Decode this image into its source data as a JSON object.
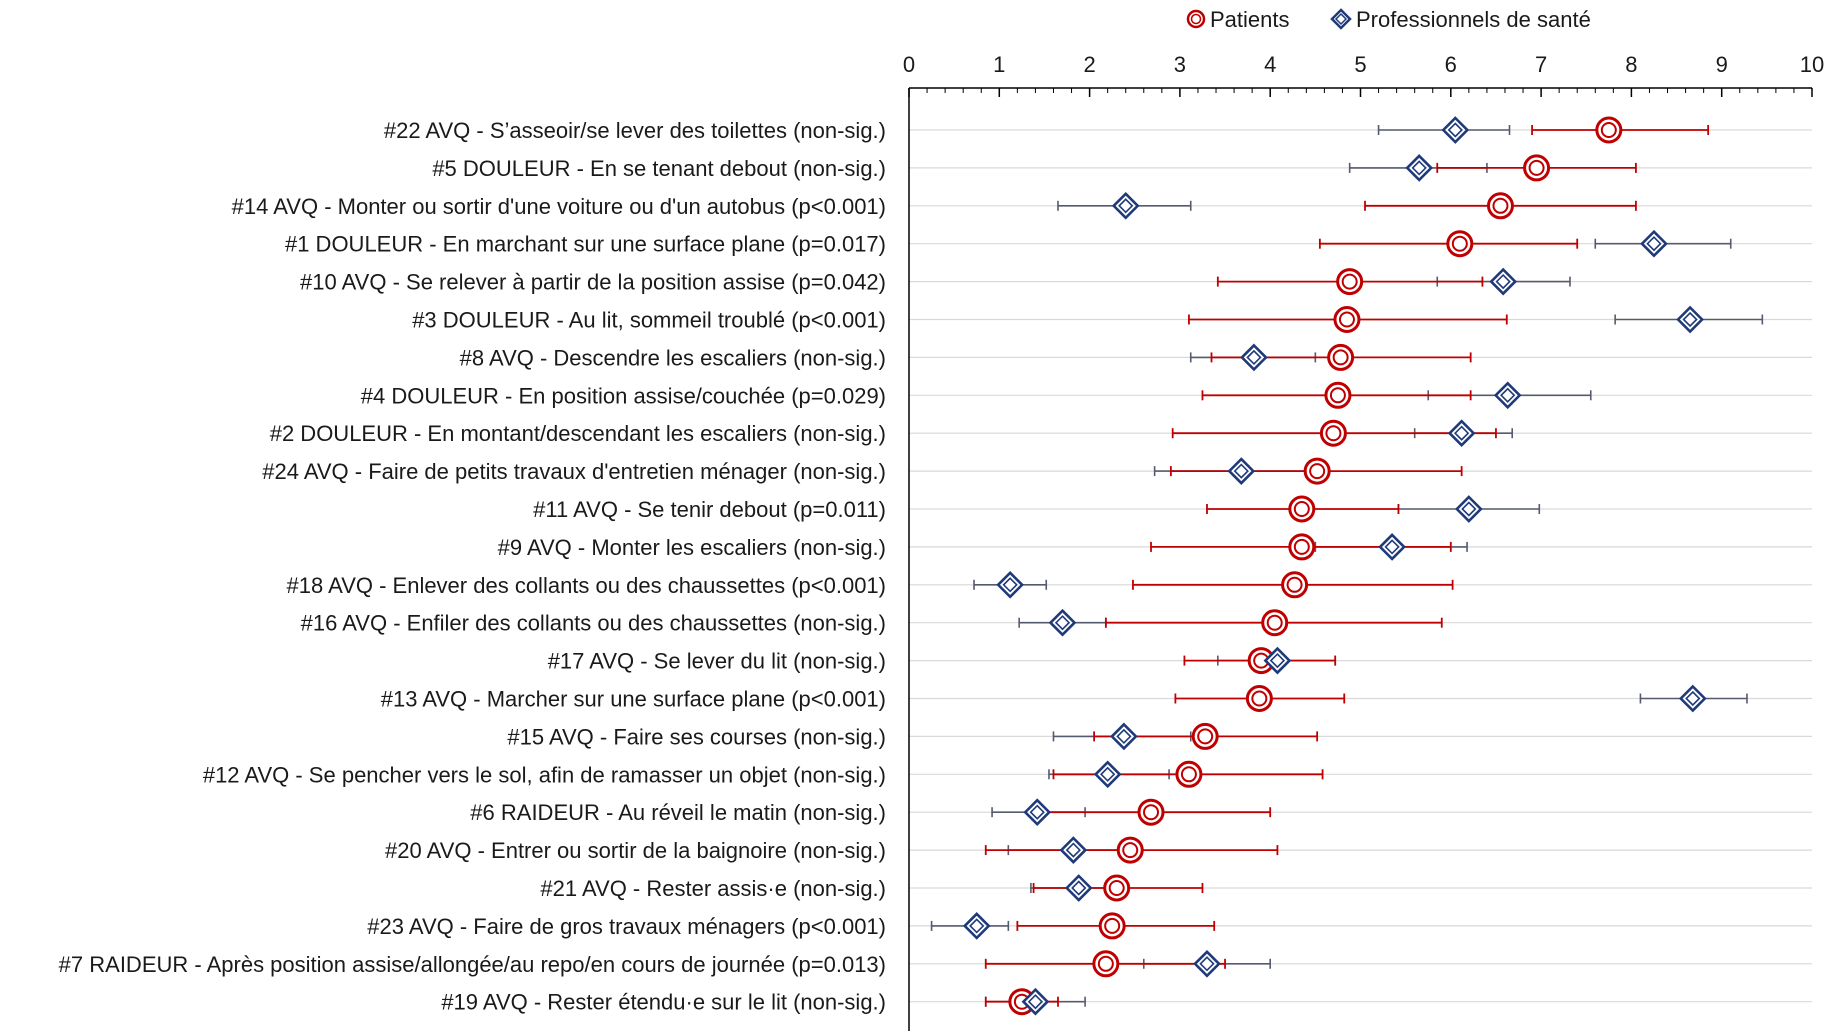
{
  "chart_data": {
    "type": "dot-plot",
    "xlim": [
      0,
      10
    ],
    "xticks": [
      0,
      1,
      2,
      3,
      4,
      5,
      6,
      7,
      8,
      9,
      10
    ],
    "grid": true,
    "legend_placement": "top",
    "colors": {
      "patients": "#c00000",
      "professionals": "#1f3a7a",
      "grid": "#d9d9d9",
      "axis": "#000000"
    },
    "series": [
      {
        "name": "Patients",
        "marker": "double-circle"
      },
      {
        "name": "Professionnels de santé",
        "marker": "double-diamond"
      }
    ],
    "rows": [
      {
        "label": "#22 AVQ - S’asseoir/se lever des toilettes (non-sig.)",
        "patients": {
          "value": 7.75,
          "low": 6.9,
          "high": 8.85
        },
        "professionals": {
          "value": 6.05,
          "low": 5.2,
          "high": 6.65
        }
      },
      {
        "label": "#5 DOULEUR - En se tenant debout (non-sig.)",
        "patients": {
          "value": 6.95,
          "low": 5.85,
          "high": 8.05
        },
        "professionals": {
          "value": 5.65,
          "low": 4.88,
          "high": 6.4
        }
      },
      {
        "label": "#14 AVQ - Monter ou sortir d'une voiture ou d'un autobus (p<0.001)",
        "patients": {
          "value": 6.55,
          "low": 5.05,
          "high": 8.05
        },
        "professionals": {
          "value": 2.4,
          "low": 1.65,
          "high": 3.12
        }
      },
      {
        "label": "#1 DOULEUR - En marchant sur une surface plane (p=0.017)",
        "patients": {
          "value": 6.1,
          "low": 4.55,
          "high": 7.4
        },
        "professionals": {
          "value": 8.25,
          "low": 7.6,
          "high": 9.1
        }
      },
      {
        "label": "#10 AVQ - Se relever à partir de la position assise (p=0.042)",
        "patients": {
          "value": 4.88,
          "low": 3.42,
          "high": 6.35
        },
        "professionals": {
          "value": 6.58,
          "low": 5.85,
          "high": 7.32
        }
      },
      {
        "label": "#3 DOULEUR - Au lit, sommeil troublé (p<0.001)",
        "patients": {
          "value": 4.85,
          "low": 3.1,
          "high": 6.62
        },
        "professionals": {
          "value": 8.65,
          "low": 7.82,
          "high": 9.45
        }
      },
      {
        "label": "#8 AVQ - Descendre les escaliers (non-sig.)",
        "patients": {
          "value": 4.78,
          "low": 3.35,
          "high": 6.22
        },
        "professionals": {
          "value": 3.82,
          "low": 3.12,
          "high": 4.5
        }
      },
      {
        "label": "#4 DOULEUR - En position assise/couchée (p=0.029)",
        "patients": {
          "value": 4.75,
          "low": 3.25,
          "high": 6.22
        },
        "professionals": {
          "value": 6.63,
          "low": 5.75,
          "high": 7.55
        }
      },
      {
        "label": "#2 DOULEUR - En montant/descendant les escaliers (non-sig.)",
        "patients": {
          "value": 4.7,
          "low": 2.92,
          "high": 6.5
        },
        "professionals": {
          "value": 6.12,
          "low": 5.6,
          "high": 6.68
        }
      },
      {
        "label": "#24 AVQ - Faire de petits travaux d'entretien ménager (non-sig.)",
        "patients": {
          "value": 4.52,
          "low": 2.9,
          "high": 6.12
        },
        "professionals": {
          "value": 3.68,
          "low": 2.72,
          "high": 4.42
        }
      },
      {
        "label": "#11 AVQ - Se tenir debout (p=0.011)",
        "patients": {
          "value": 4.35,
          "low": 3.3,
          "high": 5.42
        },
        "professionals": {
          "value": 6.2,
          "low": 5.42,
          "high": 6.98
        }
      },
      {
        "label": "#9 AVQ - Monter les escaliers (non-sig.)",
        "patients": {
          "value": 4.35,
          "low": 2.68,
          "high": 6.0
        },
        "professionals": {
          "value": 5.35,
          "low": 4.5,
          "high": 6.18
        }
      },
      {
        "label": "#18 AVQ - Enlever des collants ou des chaussettes (p<0.001)",
        "patients": {
          "value": 4.27,
          "low": 2.48,
          "high": 6.02
        },
        "professionals": {
          "value": 1.12,
          "low": 0.72,
          "high": 1.52
        }
      },
      {
        "label": "#16 AVQ - Enfiler des collants ou des chaussettes (non-sig.)",
        "patients": {
          "value": 4.05,
          "low": 2.18,
          "high": 5.9
        },
        "professionals": {
          "value": 1.7,
          "low": 1.22,
          "high": 2.18
        }
      },
      {
        "label": "#17 AVQ - Se lever du lit (non-sig.)",
        "patients": {
          "value": 3.9,
          "low": 3.05,
          "high": 4.72
        },
        "professionals": {
          "value": 4.08,
          "low": 3.42,
          "high": 4.72
        }
      },
      {
        "label": "#13 AVQ - Marcher sur une surface plane (p<0.001)",
        "patients": {
          "value": 3.88,
          "low": 2.95,
          "high": 4.82
        },
        "professionals": {
          "value": 8.68,
          "low": 8.1,
          "high": 9.28
        }
      },
      {
        "label": "#15 AVQ - Faire ses courses (non-sig.)",
        "patients": {
          "value": 3.28,
          "low": 2.05,
          "high": 4.52
        },
        "professionals": {
          "value": 2.38,
          "low": 1.6,
          "high": 3.12
        }
      },
      {
        "label": "#12 AVQ - Se pencher vers le sol, afin de ramasser un objet (non-sig.)",
        "patients": {
          "value": 3.1,
          "low": 1.6,
          "high": 4.58
        },
        "professionals": {
          "value": 2.2,
          "low": 1.55,
          "high": 2.88
        }
      },
      {
        "label": "#6 RAIDEUR - Au réveil le matin (non-sig.)",
        "patients": {
          "value": 2.68,
          "low": 1.35,
          "high": 4.0
        },
        "professionals": {
          "value": 1.42,
          "low": 0.92,
          "high": 1.95
        }
      },
      {
        "label": "#20 AVQ - Entrer ou sortir de la baignoire (non-sig.)",
        "patients": {
          "value": 2.45,
          "low": 0.85,
          "high": 4.08
        },
        "professionals": {
          "value": 1.82,
          "low": 1.1,
          "high": 2.4
        }
      },
      {
        "label": "#21 AVQ - Rester assis·e (non-sig.)",
        "patients": {
          "value": 2.3,
          "low": 1.38,
          "high": 3.25
        },
        "professionals": {
          "value": 1.88,
          "low": 1.35,
          "high": 2.4
        }
      },
      {
        "label": "#23 AVQ - Faire de gros travaux ménagers (p<0.001)",
        "patients": {
          "value": 2.25,
          "low": 1.2,
          "high": 3.38
        },
        "professionals": {
          "value": 0.75,
          "low": 0.25,
          "high": 1.1
        }
      },
      {
        "label": "#7 RAIDEUR - Après position assise/allongée/au repo/en cours de journée (p=0.013)",
        "patients": {
          "value": 2.18,
          "low": 0.85,
          "high": 3.5
        },
        "professionals": {
          "value": 3.3,
          "low": 2.6,
          "high": 4.0
        }
      },
      {
        "label": "#19 AVQ - Rester étendu·e sur le lit (non-sig.)",
        "patients": {
          "value": 1.25,
          "low": 0.85,
          "high": 1.65
        },
        "professionals": {
          "value": 1.4,
          "low": 0.85,
          "high": 1.95
        }
      }
    ]
  }
}
